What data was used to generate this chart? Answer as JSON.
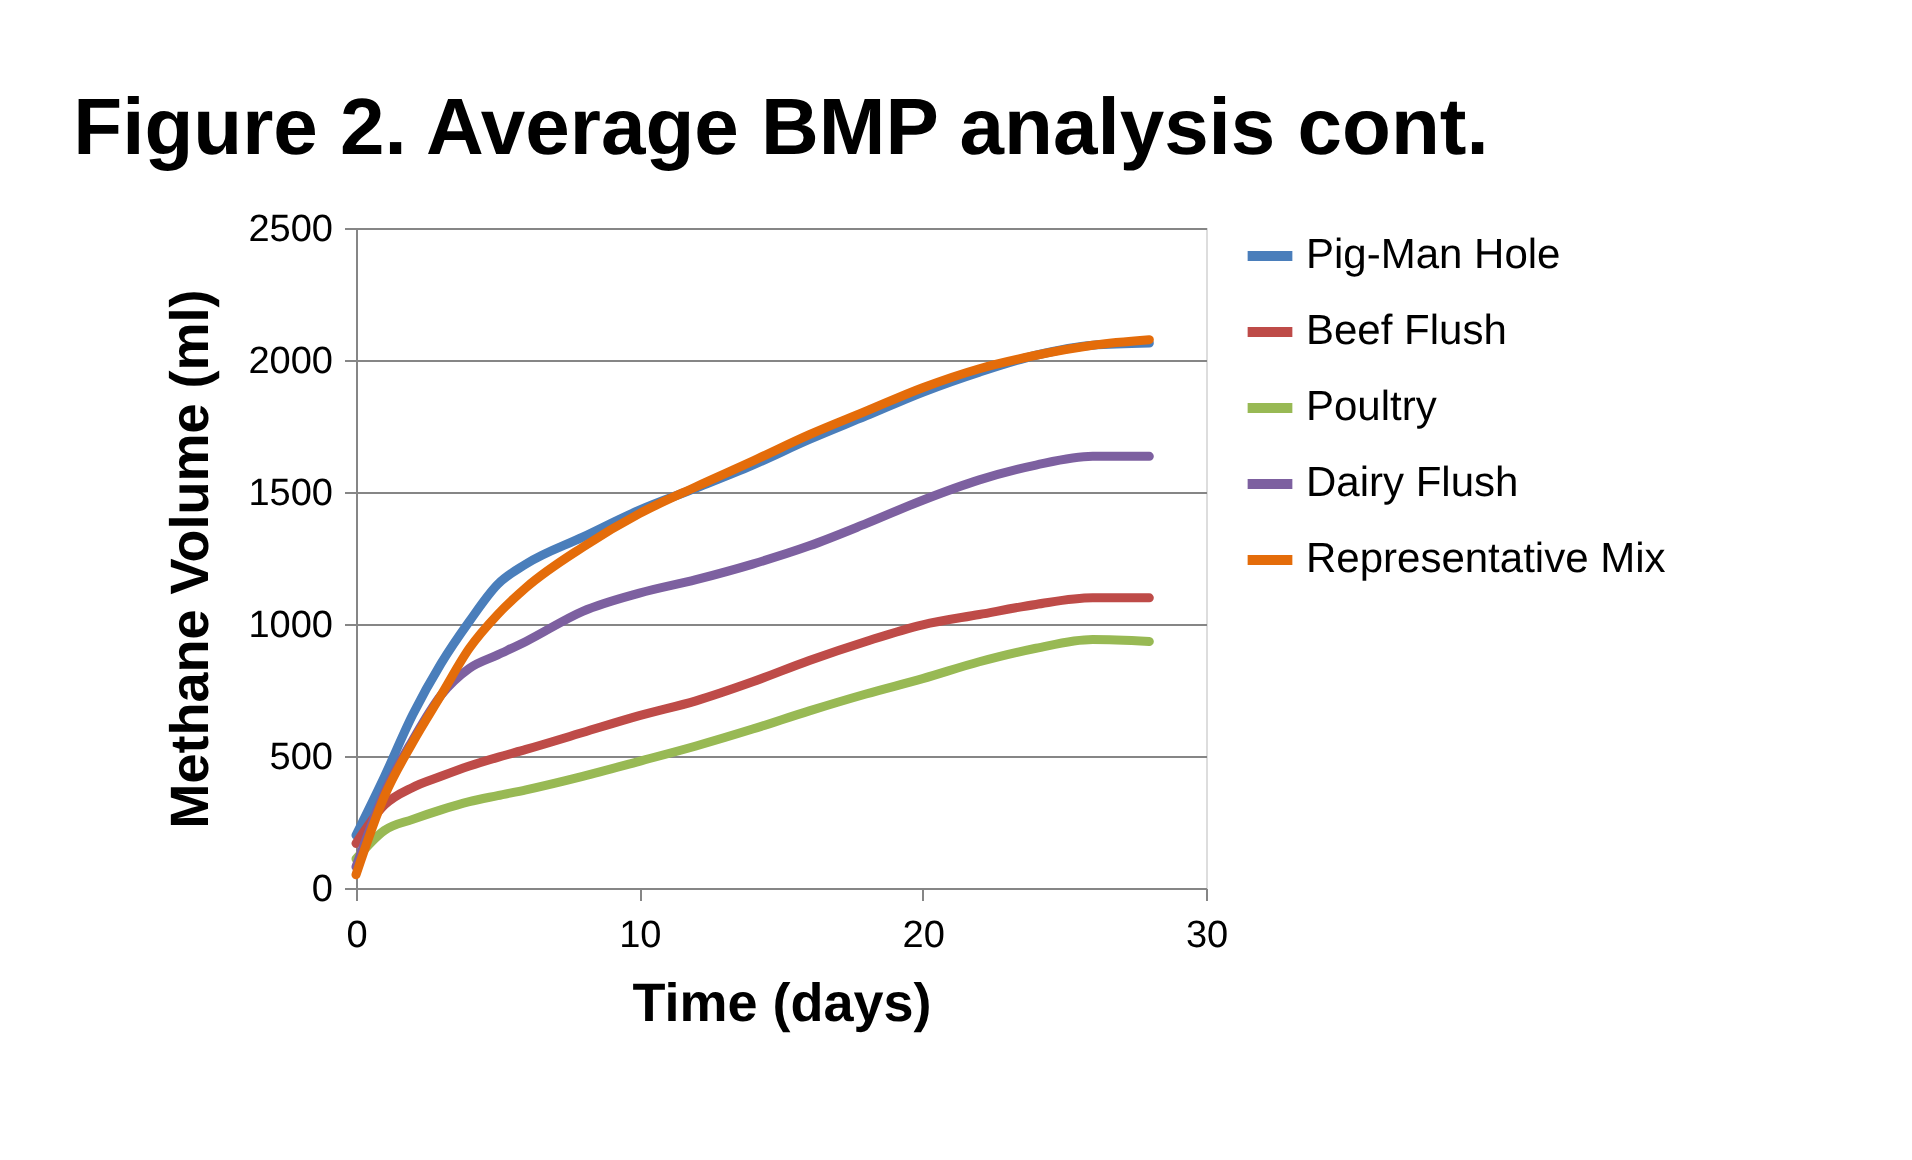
{
  "chart_data": {
    "type": "line",
    "title": "Figure 2.  Average BMP analysis cont.",
    "xlabel": "Time (days)",
    "ylabel": "Methane Volume (ml)",
    "x": [
      0,
      1,
      2,
      3,
      4,
      5,
      6,
      8,
      10,
      12,
      14,
      16,
      18,
      20,
      22,
      24,
      26,
      28
    ],
    "series": [
      {
        "name": "Pig-Man Hole",
        "color": "#4a7ebb",
        "values": [
          200,
          421,
          656,
          850,
          1010,
          1150,
          1227,
          1329,
          1431,
          1515,
          1602,
          1699,
          1788,
          1878,
          1954,
          2018,
          2056,
          2064
        ]
      },
      {
        "name": "Beef Flush",
        "color": "#be4b48",
        "values": [
          169,
          314,
          381,
          423,
          462,
          495,
          525,
          589,
          653,
          709,
          781,
          862,
          934,
          997,
          1036,
          1074,
          1099,
          1099
        ]
      },
      {
        "name": "Poultry",
        "color": "#98b954",
        "values": [
          110,
          218,
          260,
          296,
          327,
          350,
          372,
          423,
          480,
          538,
          602,
          671,
          735,
          793,
          857,
          908,
          941,
          934
        ]
      },
      {
        "name": "Dairy Flush",
        "color": "#7d60a0",
        "values": [
          80,
          360,
          560,
          730,
          832,
          883,
          934,
          1048,
          1117,
          1168,
          1227,
          1296,
          1380,
          1469,
          1546,
          1602,
          1635,
          1635
        ]
      },
      {
        "name": "Representative Mix",
        "color": "#e46c0a",
        "values": [
          50,
          347,
          551,
          730,
          908,
          1036,
          1138,
          1291,
          1418,
          1520,
          1617,
          1717,
          1806,
          1895,
          1967,
          2018,
          2056,
          2077
        ]
      }
    ],
    "xlim": [
      0,
      30
    ],
    "xticks": [
      0,
      10,
      20,
      30
    ],
    "ylim": [
      0,
      2500
    ],
    "yticks": [
      0,
      500,
      {
        "value": 1000,
        "label": "1000"
      },
      {
        "value": 1500,
        "label": "1500"
      },
      {
        "value": 2000,
        "label": "2000"
      },
      {
        "value": 2500,
        "label": "2500"
      }
    ],
    "grid": "y",
    "legend": "right",
    "marker": "none",
    "line_style": "solid"
  }
}
